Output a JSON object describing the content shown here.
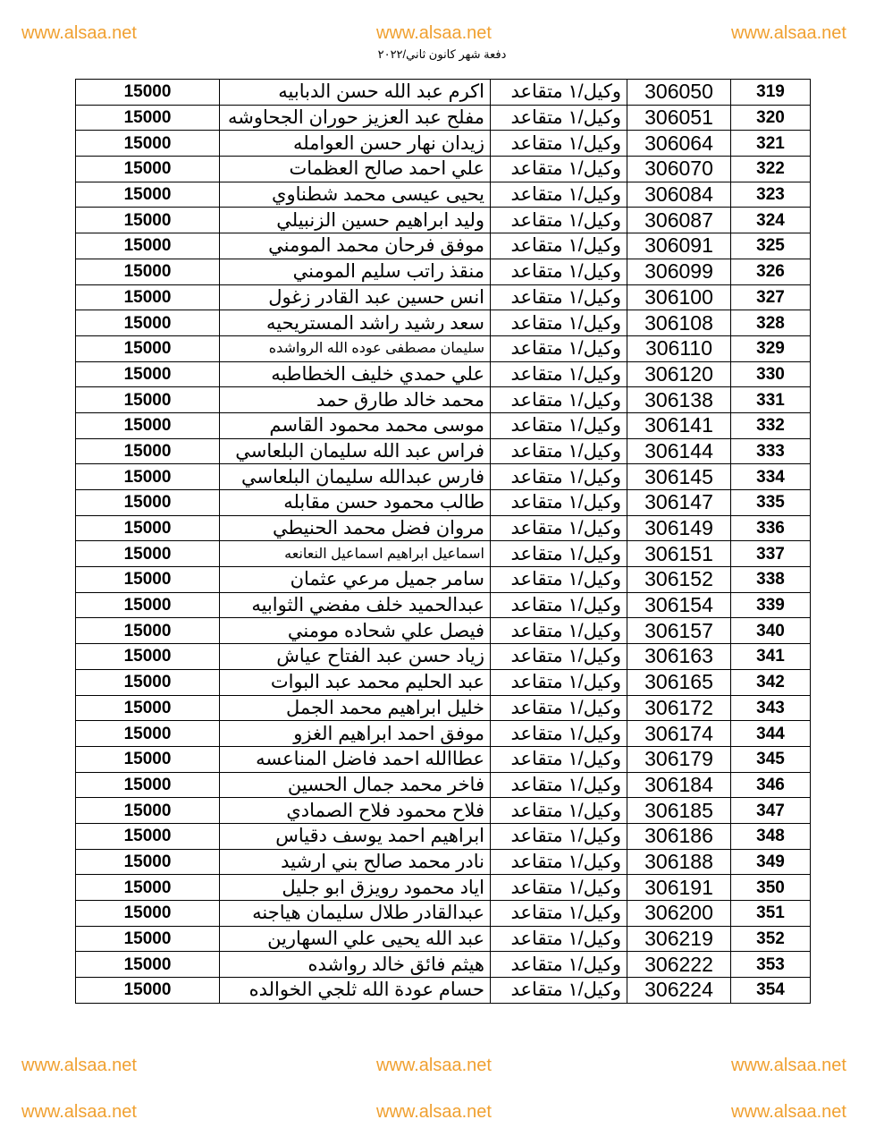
{
  "watermark": "www.alsaa.net",
  "document_title": "دفعة شهر كانون ثاني/٢٠٢٢",
  "rank_label": "وكيل/١ متقاعد",
  "amount": "15000",
  "rows": [
    {
      "serial": "319",
      "id": "306050",
      "name": "اكرم عبد الله حسن الدبابيه"
    },
    {
      "serial": "320",
      "id": "306051",
      "name": "مفلح عبد العزيز حوران الجحاوشه"
    },
    {
      "serial": "321",
      "id": "306064",
      "name": "زيدان نهار حسن العوامله"
    },
    {
      "serial": "322",
      "id": "306070",
      "name": "علي احمد صالح العظمات"
    },
    {
      "serial": "323",
      "id": "306084",
      "name": "يحيى عيسى محمد شطناوي"
    },
    {
      "serial": "324",
      "id": "306087",
      "name": "وليد ابراهيم حسين الزنبيلي"
    },
    {
      "serial": "325",
      "id": "306091",
      "name": "موفق فرحان محمد المومني"
    },
    {
      "serial": "326",
      "id": "306099",
      "name": "منقذ راتب سليم المومني"
    },
    {
      "serial": "327",
      "id": "306100",
      "name": "انس حسين عبد القادر زغول"
    },
    {
      "serial": "328",
      "id": "306108",
      "name": "سعد رشيد راشد المستريحيه"
    },
    {
      "serial": "329",
      "id": "306110",
      "name": "سليمان مصطفى عوده الله الرواشده"
    },
    {
      "serial": "330",
      "id": "306120",
      "name": "علي حمدي خليف الخطاطبه"
    },
    {
      "serial": "331",
      "id": "306138",
      "name": "محمد خالد طارق حمد"
    },
    {
      "serial": "332",
      "id": "306141",
      "name": "موسى محمد محمود القاسم"
    },
    {
      "serial": "333",
      "id": "306144",
      "name": "فراس عبد الله سليمان البلعاسي"
    },
    {
      "serial": "334",
      "id": "306145",
      "name": "فارس عبدالله سليمان البلعاسي"
    },
    {
      "serial": "335",
      "id": "306147",
      "name": "طالب محمود حسن مقابله"
    },
    {
      "serial": "336",
      "id": "306149",
      "name": "مروان فضل محمد الحنيطي"
    },
    {
      "serial": "337",
      "id": "306151",
      "name": "اسماعيل ابراهيم اسماعيل النعانعه"
    },
    {
      "serial": "338",
      "id": "306152",
      "name": "سامر جميل مرعي عثمان"
    },
    {
      "serial": "339",
      "id": "306154",
      "name": "عبدالحميد خلف مفضي الثوابيه"
    },
    {
      "serial": "340",
      "id": "306157",
      "name": "فيصل علي شحاده مومني"
    },
    {
      "serial": "341",
      "id": "306163",
      "name": "زياد حسن عبد الفتاح عياش"
    },
    {
      "serial": "342",
      "id": "306165",
      "name": "عبد الحليم محمد عبد البوات"
    },
    {
      "serial": "343",
      "id": "306172",
      "name": "خليل ابراهيم محمد الجمل"
    },
    {
      "serial": "344",
      "id": "306174",
      "name": "موفق احمد ابراهيم الغزو"
    },
    {
      "serial": "345",
      "id": "306179",
      "name": "عطاالله احمد فاضل المناعسه"
    },
    {
      "serial": "346",
      "id": "306184",
      "name": "فاخر محمد جمال الحسين"
    },
    {
      "serial": "347",
      "id": "306185",
      "name": "فلاح محمود فلاح الصمادي"
    },
    {
      "serial": "348",
      "id": "306186",
      "name": "ابراهيم احمد يوسف دقياس"
    },
    {
      "serial": "349",
      "id": "306188",
      "name": "نادر محمد صالح بني ارشيد"
    },
    {
      "serial": "350",
      "id": "306191",
      "name": "اياد محمود رويزق ابو جليل"
    },
    {
      "serial": "351",
      "id": "306200",
      "name": "عبدالقادر طلال سليمان هياجنه"
    },
    {
      "serial": "352",
      "id": "306219",
      "name": "عبد الله يحيى  علي السهارين"
    },
    {
      "serial": "353",
      "id": "306222",
      "name": "هيثم فائق خالد رواشده"
    },
    {
      "serial": "354",
      "id": "306224",
      "name": "حسام عودة الله ثلجي الخوالده"
    }
  ]
}
